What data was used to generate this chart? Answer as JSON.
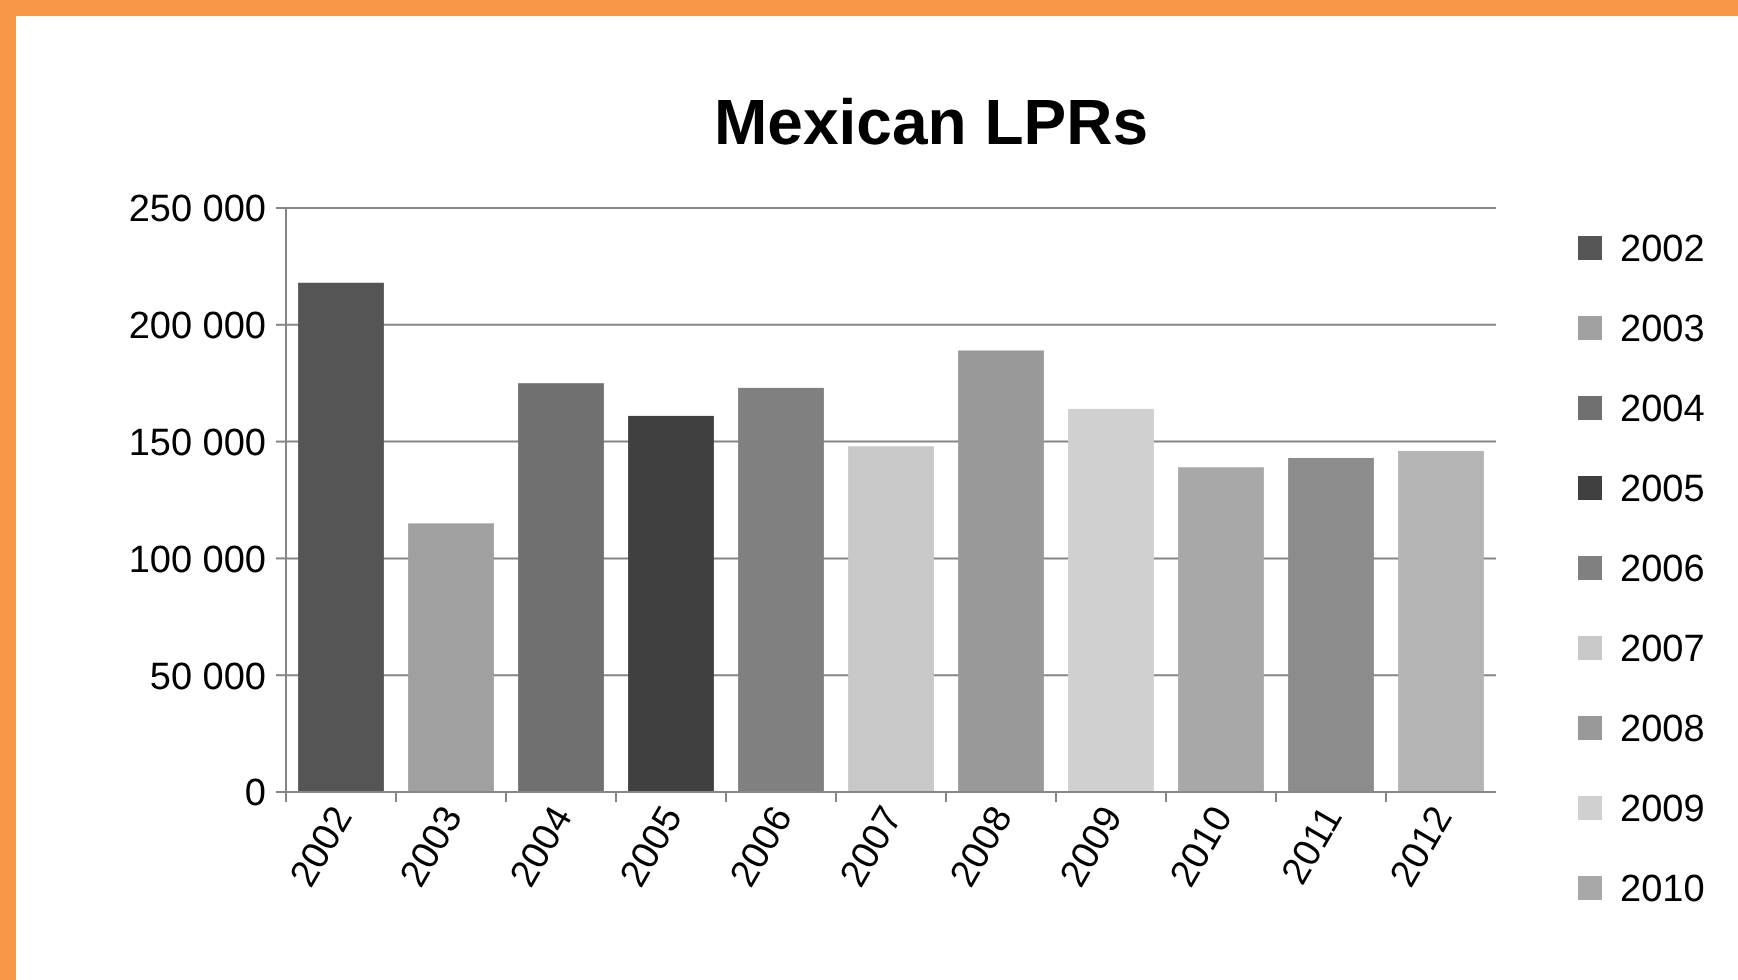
{
  "chart_data": {
    "type": "bar",
    "title": "Mexican LPRs",
    "categories": [
      "2002",
      "2003",
      "2004",
      "2005",
      "2006",
      "2007",
      "2008",
      "2009",
      "2010",
      "2011",
      "2012"
    ],
    "series": [
      {
        "name": "2002",
        "color": "#555555",
        "values": [
          218000,
          null,
          null,
          null,
          null,
          null,
          null,
          null,
          null,
          null,
          null
        ]
      },
      {
        "name": "2003",
        "color": "#a0a0a0",
        "values": [
          null,
          115000,
          null,
          null,
          null,
          null,
          null,
          null,
          null,
          null,
          null
        ]
      },
      {
        "name": "2004",
        "color": "#707070",
        "values": [
          null,
          null,
          175000,
          null,
          null,
          null,
          null,
          null,
          null,
          null,
          null
        ]
      },
      {
        "name": "2005",
        "color": "#404040",
        "values": [
          null,
          null,
          null,
          161000,
          null,
          null,
          null,
          null,
          null,
          null,
          null
        ]
      },
      {
        "name": "2006",
        "color": "#808080",
        "values": [
          null,
          null,
          null,
          null,
          173000,
          null,
          null,
          null,
          null,
          null,
          null
        ]
      },
      {
        "name": "2007",
        "color": "#c8c8c8",
        "values": [
          null,
          null,
          null,
          null,
          null,
          148000,
          null,
          null,
          null,
          null,
          null
        ]
      },
      {
        "name": "2008",
        "color": "#999999",
        "values": [
          null,
          null,
          null,
          null,
          null,
          null,
          189000,
          null,
          null,
          null,
          null
        ]
      },
      {
        "name": "2009",
        "color": "#d0d0d0",
        "values": [
          null,
          null,
          null,
          null,
          null,
          null,
          null,
          164000,
          null,
          null,
          null
        ]
      },
      {
        "name": "2010",
        "color": "#a8a8a8",
        "values": [
          null,
          null,
          null,
          null,
          null,
          null,
          null,
          null,
          139000,
          null,
          null
        ]
      },
      {
        "color": "#8c8c8c",
        "values": [
          null,
          null,
          null,
          null,
          null,
          null,
          null,
          null,
          null,
          143000,
          null
        ]
      },
      {
        "color": "#b4b4b4",
        "values": [
          null,
          null,
          null,
          null,
          null,
          null,
          null,
          null,
          null,
          null,
          146000
        ]
      }
    ],
    "ylim": [
      0,
      250000
    ],
    "yticks": [
      0,
      {
        "value": 50000,
        "label": "50 000"
      },
      {
        "value": 100000,
        "label": "100 000"
      },
      {
        "value": 150000,
        "label": "150 000"
      },
      {
        "value": 200000,
        "label": "200 000"
      },
      {
        "value": 250000,
        "label": "250 000"
      }
    ],
    "grid": "y",
    "legend": "right"
  }
}
